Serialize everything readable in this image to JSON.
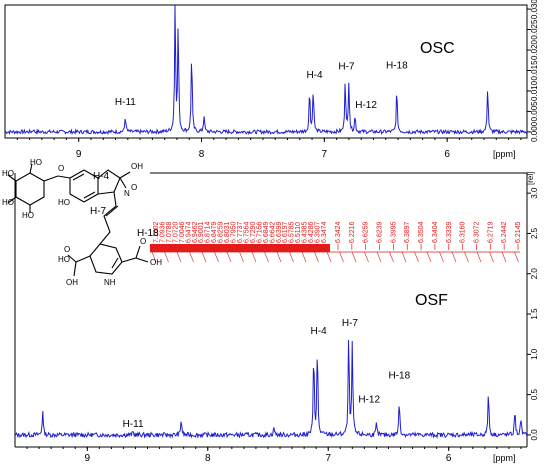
{
  "chart_data": [
    {
      "type": "line",
      "sample_label": "OSC",
      "xlabel": "[ppm]",
      "x_ticks": [
        "9",
        "8",
        "7",
        "6"
      ],
      "xlim": [
        9.6,
        5.35
      ],
      "y_ticks": [
        "0.000",
        "0.005",
        "0.010",
        "0.015",
        "0.020",
        "0.025",
        "0.030"
      ],
      "ylim": [
        -0.0015,
        0.031
      ],
      "baseline": 0.0,
      "peaks": [
        {
          "x": 9.37,
          "y": 0.0006
        },
        {
          "x": 8.62,
          "y": 0.004
        },
        {
          "x": 8.215,
          "y": 0.031
        },
        {
          "x": 8.19,
          "y": 0.026
        },
        {
          "x": 8.08,
          "y": 0.02
        },
        {
          "x": 7.98,
          "y": 0.0042
        },
        {
          "x": 7.12,
          "y": 0.0106
        },
        {
          "x": 7.09,
          "y": 0.011
        },
        {
          "x": 6.83,
          "y": 0.0128
        },
        {
          "x": 6.8,
          "y": 0.0126
        },
        {
          "x": 6.75,
          "y": 0.004
        },
        {
          "x": 6.41,
          "y": 0.0108
        },
        {
          "x": 5.67,
          "y": 0.0115
        }
      ],
      "annotations": [
        {
          "text": "H-11",
          "x": 8.62,
          "y": 0.0066
        },
        {
          "text": "H-4",
          "x": 7.08,
          "y": 0.0132
        },
        {
          "text": "H-7",
          "x": 6.82,
          "y": 0.0152
        },
        {
          "text": "H-12",
          "x": 6.66,
          "y": 0.0058
        },
        {
          "text": "H-18",
          "x": 6.41,
          "y": 0.0155
        }
      ]
    },
    {
      "type": "line",
      "sample_label": "OSF",
      "xlabel": "[ppm]",
      "x_ticks": [
        "9",
        "8",
        "7",
        "6"
      ],
      "xlim": [
        9.6,
        5.35
      ],
      "y_ticks": [
        "0.0",
        "0.5",
        "1.0",
        "1.5",
        "2.0",
        "2.5",
        "3.0"
      ],
      "y_unit": "[rel]",
      "ylim": [
        -0.15,
        3.25
      ],
      "baseline": 0.0,
      "peaks": [
        {
          "x": 9.37,
          "y": 0.32
        },
        {
          "x": 8.62,
          "y": 0.04
        },
        {
          "x": 8.22,
          "y": 0.2
        },
        {
          "x": 7.45,
          "y": 0.1
        },
        {
          "x": 7.12,
          "y": 1.05
        },
        {
          "x": 7.09,
          "y": 1.12
        },
        {
          "x": 6.83,
          "y": 1.25
        },
        {
          "x": 6.8,
          "y": 1.18
        },
        {
          "x": 6.6,
          "y": 0.14
        },
        {
          "x": 6.41,
          "y": 0.45
        },
        {
          "x": 5.67,
          "y": 0.56
        },
        {
          "x": 5.45,
          "y": 0.32
        },
        {
          "x": 5.4,
          "y": 0.22
        }
      ],
      "annotations": [
        {
          "text": "H-11",
          "x": 8.62,
          "y": 0.1
        },
        {
          "text": "H-4",
          "x": 7.08,
          "y": 1.25
        },
        {
          "text": "H-7",
          "x": 6.82,
          "y": 1.35
        },
        {
          "text": "H-12",
          "x": 6.66,
          "y": 0.4
        },
        {
          "text": "H-18",
          "x": 6.41,
          "y": 0.7
        }
      ],
      "integration_labels": [
        "7.1002",
        "7.0936",
        "7.0788",
        "7.0720",
        "7.0046",
        "6.9474",
        "6.9462",
        "6.9001",
        "6.8714",
        "6.8479",
        "6.8259",
        "6.8031",
        "6.7950",
        "6.7737",
        "6.7564",
        "6.7290",
        "6.7156",
        "6.6849",
        "6.6642",
        "6.6399",
        "6.6197",
        "6.5785",
        "6.5110",
        "6.4385",
        "6.4286",
        "6.3907",
        "6.3474",
        "6.3424",
        "6.2216",
        "6.6259",
        "6.6239",
        "6.3995",
        "6.3897",
        "6.3504",
        "6.3404",
        "6.3339",
        "6.3160",
        "6.3072",
        "6.2719",
        "6.2442",
        "6.2145"
      ]
    }
  ],
  "structure": {
    "labels": [
      "H-4",
      "H-7",
      "H-18",
      "HO",
      "HO",
      "HO",
      "HO",
      "O",
      "HO",
      "N",
      "OH",
      "O",
      "O",
      "OH",
      "HO",
      "NH",
      "O",
      "OH",
      "O"
    ]
  }
}
